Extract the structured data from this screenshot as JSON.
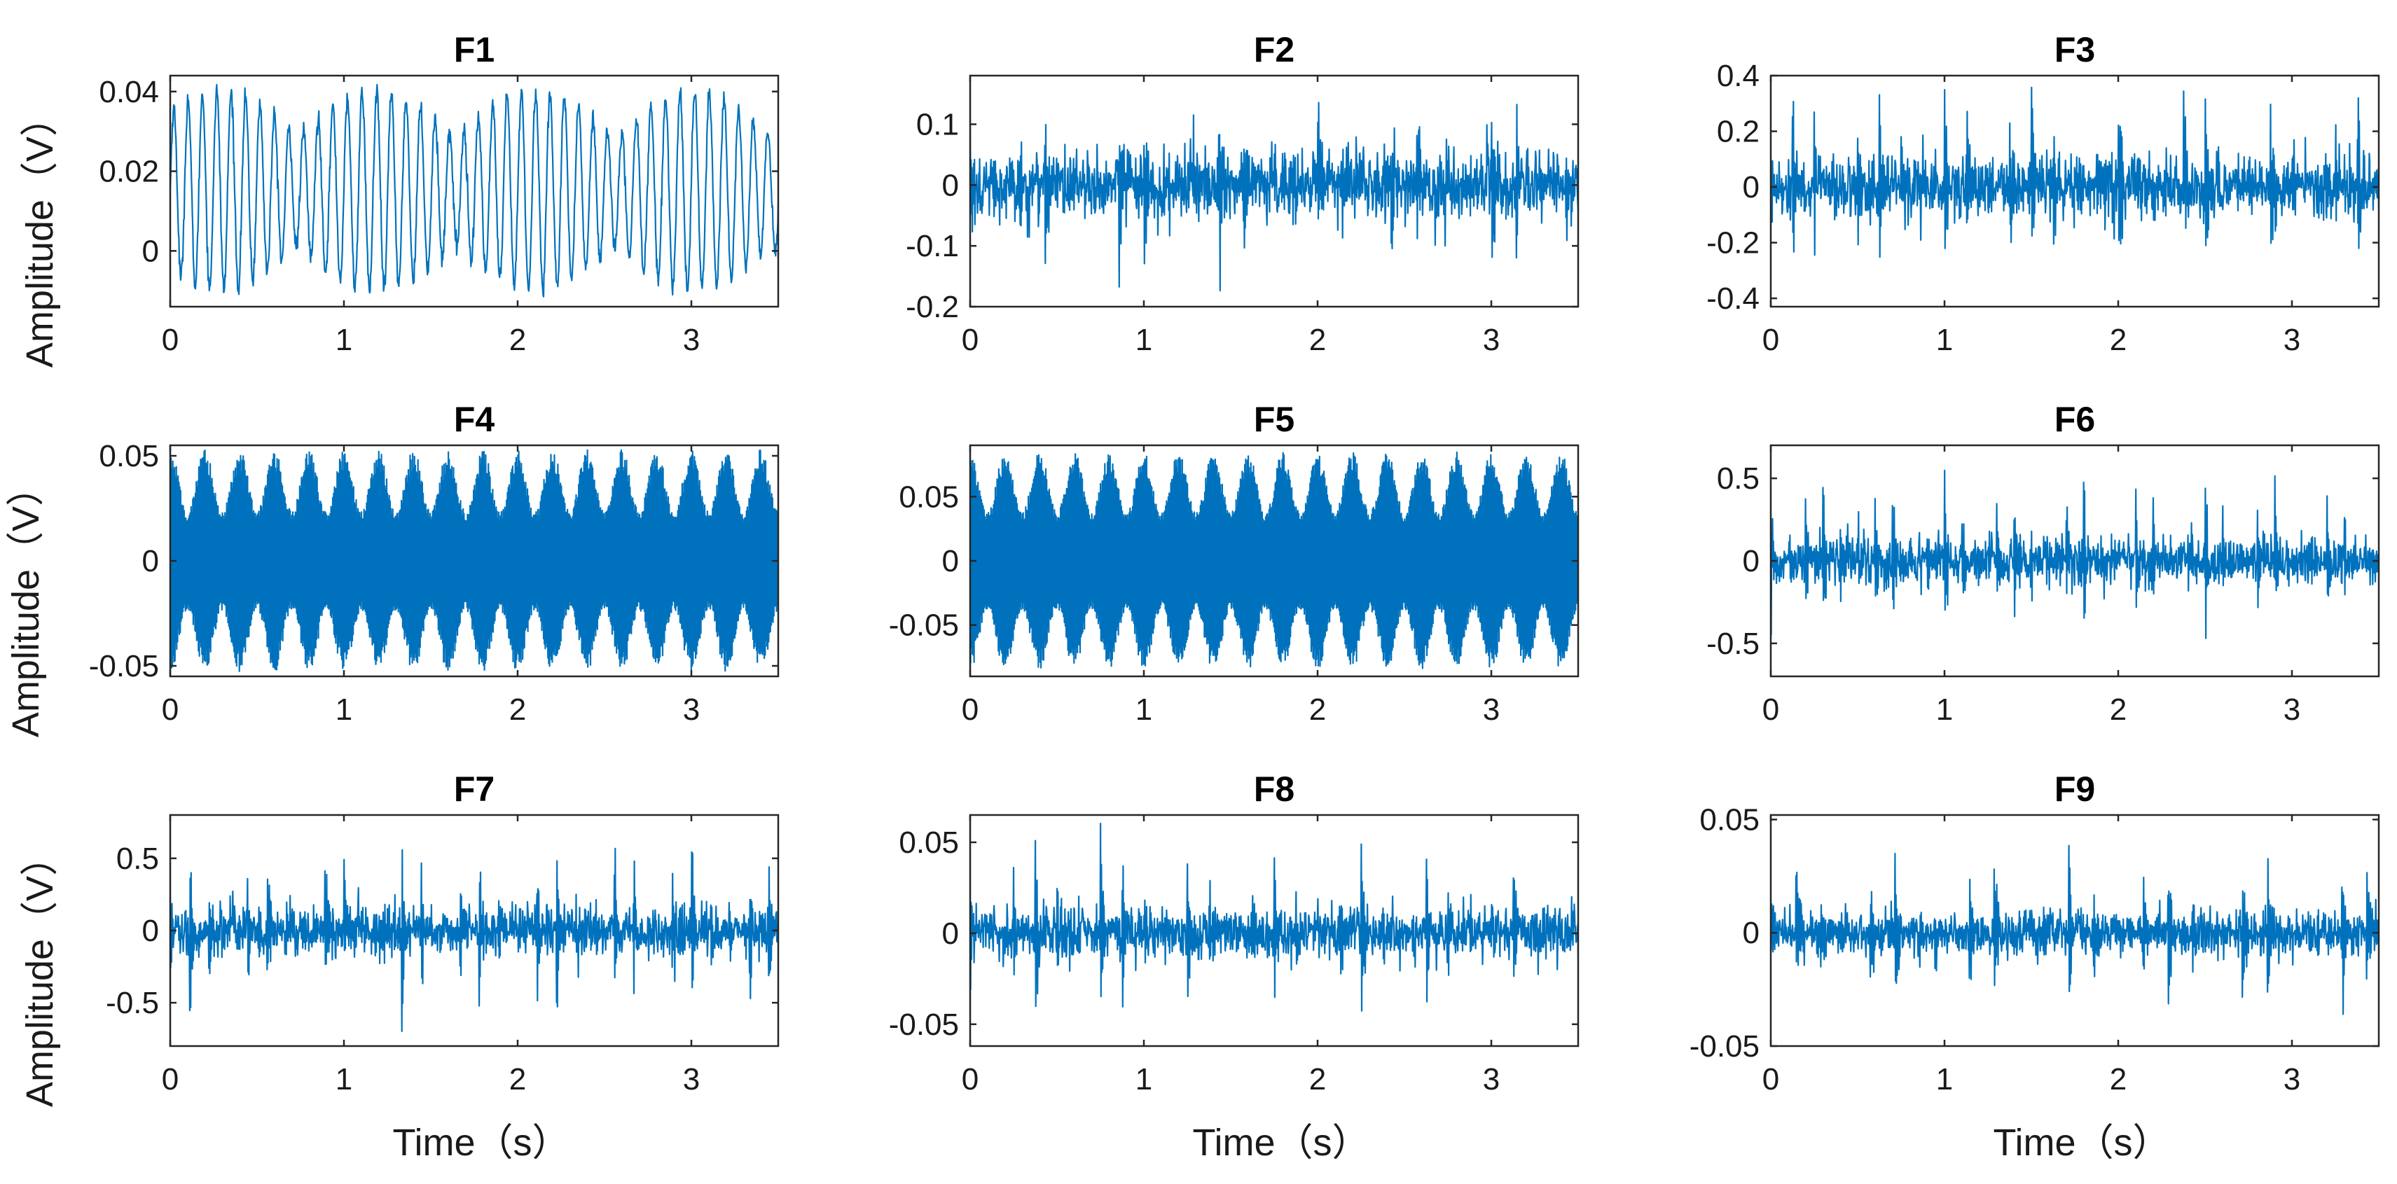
{
  "colors": {
    "trace": "#0072BD",
    "axes": "#262626",
    "background": "#ffffff"
  },
  "chart_data": [
    {
      "type": "line",
      "title": "F1",
      "xlabel": "",
      "ylabel": "Amplitude（V）",
      "xlim": [
        0,
        3.5
      ],
      "ylim": [
        -0.014,
        0.044
      ],
      "xticks": [
        0,
        1,
        2,
        3
      ],
      "yticks": [
        0,
        0.02,
        0.04
      ],
      "xtick_labels": [
        "0",
        "1",
        "2",
        "3"
      ],
      "ytick_labels": [
        "0",
        "0.02",
        "0.04"
      ],
      "grid": false,
      "signal": {
        "kind": "modulated sinusoid",
        "offset": 0.015,
        "amplitude": 0.025,
        "carrier_cycles_per_s": 12,
        "envelope_cycles_per_s": 1.1,
        "duration_s": 3.5
      }
    },
    {
      "type": "line",
      "title": "F2",
      "xlabel": "",
      "ylabel": "",
      "xlim": [
        0,
        3.5
      ],
      "ylim": [
        -0.2,
        0.18
      ],
      "xticks": [
        0,
        1,
        2,
        3
      ],
      "yticks": [
        -0.2,
        -0.1,
        0,
        0.1
      ],
      "xtick_labels": [
        "0",
        "1",
        "2",
        "3"
      ],
      "ytick_labels": [
        "-0.2",
        "-0.1",
        "0",
        "0.1"
      ],
      "grid": false,
      "signal": {
        "kind": "noisy vibration with impulses",
        "offset": 0,
        "noise_amplitude": 0.06,
        "peak_amplitude": 0.18,
        "impulses_per_s": 7,
        "duration_s": 3.5
      }
    },
    {
      "type": "line",
      "title": "F3",
      "xlabel": "",
      "ylabel": "",
      "xlim": [
        0,
        3.5
      ],
      "ylim": [
        -0.43,
        0.4
      ],
      "xticks": [
        0,
        1,
        2,
        3
      ],
      "yticks": [
        -0.4,
        -0.2,
        0,
        0.2,
        0.4
      ],
      "xtick_labels": [
        "0",
        "1",
        "2",
        "3"
      ],
      "ytick_labels": [
        "-0.4",
        "-0.2",
        "0",
        "0.2",
        "0.4"
      ],
      "grid": false,
      "signal": {
        "kind": "noisy vibration with impulses",
        "offset": 0,
        "noise_amplitude": 0.12,
        "peak_amplitude": 0.42,
        "impulses_per_s": 8,
        "duration_s": 3.5
      }
    },
    {
      "type": "line",
      "title": "F4",
      "xlabel": "",
      "ylabel": "Amplitude（V）",
      "xlim": [
        0,
        3.5
      ],
      "ylim": [
        -0.055,
        0.055
      ],
      "xticks": [
        0,
        1,
        2,
        3
      ],
      "yticks": [
        -0.05,
        0,
        0.05
      ],
      "xtick_labels": [
        "0",
        "1",
        "2",
        "3"
      ],
      "ytick_labels": [
        "-0.05",
        "0",
        "0.05"
      ],
      "grid": false,
      "signal": {
        "kind": "amplitude-modulated dense carrier",
        "offset": 0,
        "amplitude": 0.053,
        "envelope_cycles_per_s": 5,
        "duration_s": 3.5
      }
    },
    {
      "type": "line",
      "title": "F5",
      "xlabel": "",
      "ylabel": "",
      "xlim": [
        0,
        3.5
      ],
      "ylim": [
        -0.09,
        0.09
      ],
      "xticks": [
        0,
        1,
        2,
        3
      ],
      "yticks": [
        -0.05,
        0,
        0.05
      ],
      "xtick_labels": [
        "0",
        "1",
        "2",
        "3"
      ],
      "ytick_labels": [
        "-0.05",
        "0",
        "0.05"
      ],
      "grid": false,
      "signal": {
        "kind": "amplitude-modulated dense carrier",
        "offset": 0,
        "amplitude": 0.085,
        "envelope_cycles_per_s": 5,
        "duration_s": 3.5
      }
    },
    {
      "type": "line",
      "title": "F6",
      "xlabel": "",
      "ylabel": "",
      "xlim": [
        0,
        3.5
      ],
      "ylim": [
        -0.7,
        0.7
      ],
      "xticks": [
        0,
        1,
        2,
        3
      ],
      "yticks": [
        -0.5,
        0,
        0.5
      ],
      "xtick_labels": [
        "0",
        "1",
        "2",
        "3"
      ],
      "ytick_labels": [
        "-0.5",
        "0",
        "0.5"
      ],
      "grid": false,
      "signal": {
        "kind": "noisy vibration with impulses",
        "offset": 0,
        "noise_amplitude": 0.15,
        "peak_amplitude": 0.68,
        "impulses_per_s": 10,
        "duration_s": 3.5
      }
    },
    {
      "type": "line",
      "title": "F7",
      "xlabel": "Time（s）",
      "ylabel": "Amplitude（V）",
      "xlim": [
        0,
        3.5
      ],
      "ylim": [
        -0.8,
        0.8
      ],
      "xticks": [
        0,
        1,
        2,
        3
      ],
      "yticks": [
        -0.5,
        0,
        0.5
      ],
      "xtick_labels": [
        "0",
        "1",
        "2",
        "3"
      ],
      "ytick_labels": [
        "-0.5",
        "0",
        "0.5"
      ],
      "grid": false,
      "signal": {
        "kind": "noisy vibration with impulses",
        "offset": 0,
        "noise_amplitude": 0.18,
        "peak_amplitude": 0.78,
        "impulses_per_s": 9,
        "duration_s": 3.5
      }
    },
    {
      "type": "line",
      "title": "F8",
      "xlabel": "Time（s）",
      "ylabel": "",
      "xlim": [
        0,
        3.5
      ],
      "ylim": [
        -0.062,
        0.065
      ],
      "xticks": [
        0,
        1,
        2,
        3
      ],
      "yticks": [
        -0.05,
        0,
        0.05
      ],
      "xtick_labels": [
        "0",
        "1",
        "2",
        "3"
      ],
      "ytick_labels": [
        "-0.05",
        "0",
        "0.05"
      ],
      "grid": false,
      "signal": {
        "kind": "noisy vibration with impulses",
        "offset": 0,
        "noise_amplitude": 0.015,
        "peak_amplitude": 0.06,
        "impulses_per_s": 8,
        "duration_s": 3.5
      }
    },
    {
      "type": "line",
      "title": "F9",
      "xlabel": "Time（s）",
      "ylabel": "",
      "xlim": [
        0,
        3.5
      ],
      "ylim": [
        -0.05,
        0.052
      ],
      "xticks": [
        0,
        1,
        2,
        3
      ],
      "yticks": [
        -0.05,
        0,
        0.05
      ],
      "xtick_labels": [
        "0",
        "1",
        "2",
        "3"
      ],
      "ytick_labels": [
        "-0.05",
        "0",
        "0.05"
      ],
      "grid": false,
      "signal": {
        "kind": "noisy vibration with impulses",
        "offset": 0,
        "noise_amplitude": 0.01,
        "peak_amplitude": 0.05,
        "impulses_per_s": 7,
        "duration_s": 3.5
      }
    }
  ]
}
